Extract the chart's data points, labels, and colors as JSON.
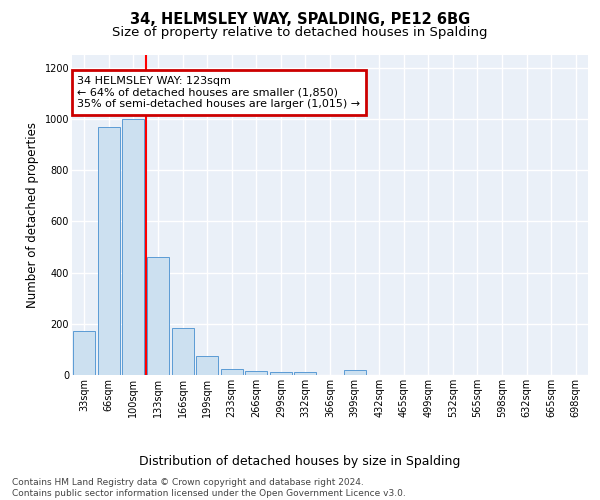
{
  "title": "34, HELMSLEY WAY, SPALDING, PE12 6BG",
  "subtitle": "Size of property relative to detached houses in Spalding",
  "xlabel": "Distribution of detached houses by size in Spalding",
  "ylabel": "Number of detached properties",
  "footnote": "Contains HM Land Registry data © Crown copyright and database right 2024.\nContains public sector information licensed under the Open Government Licence v3.0.",
  "categories": [
    "33sqm",
    "66sqm",
    "100sqm",
    "133sqm",
    "166sqm",
    "199sqm",
    "233sqm",
    "266sqm",
    "299sqm",
    "332sqm",
    "366sqm",
    "399sqm",
    "432sqm",
    "465sqm",
    "499sqm",
    "532sqm",
    "565sqm",
    "598sqm",
    "632sqm",
    "665sqm",
    "698sqm"
  ],
  "values": [
    170,
    970,
    1000,
    460,
    185,
    75,
    25,
    15,
    12,
    10,
    0,
    20,
    0,
    0,
    0,
    0,
    0,
    0,
    0,
    0,
    0
  ],
  "bar_color": "#cce0f0",
  "bar_edge_color": "#5b9bd5",
  "red_line_x": 2.5,
  "annotation_lines": [
    "34 HELMSLEY WAY: 123sqm",
    "← 64% of detached houses are smaller (1,850)",
    "35% of semi-detached houses are larger (1,015) →"
  ],
  "ann_box_color": "#cc0000",
  "ann_facecolor": "white",
  "ylim": [
    0,
    1250
  ],
  "yticks": [
    0,
    200,
    400,
    600,
    800,
    1000,
    1200
  ],
  "bg_color": "#eaf0f8",
  "grid_color": "white",
  "title_fontsize": 10.5,
  "subtitle_fontsize": 9.5,
  "ylabel_fontsize": 8.5,
  "xlabel_fontsize": 9,
  "tick_fontsize": 7,
  "annotation_fontsize": 8,
  "footnote_fontsize": 6.5
}
